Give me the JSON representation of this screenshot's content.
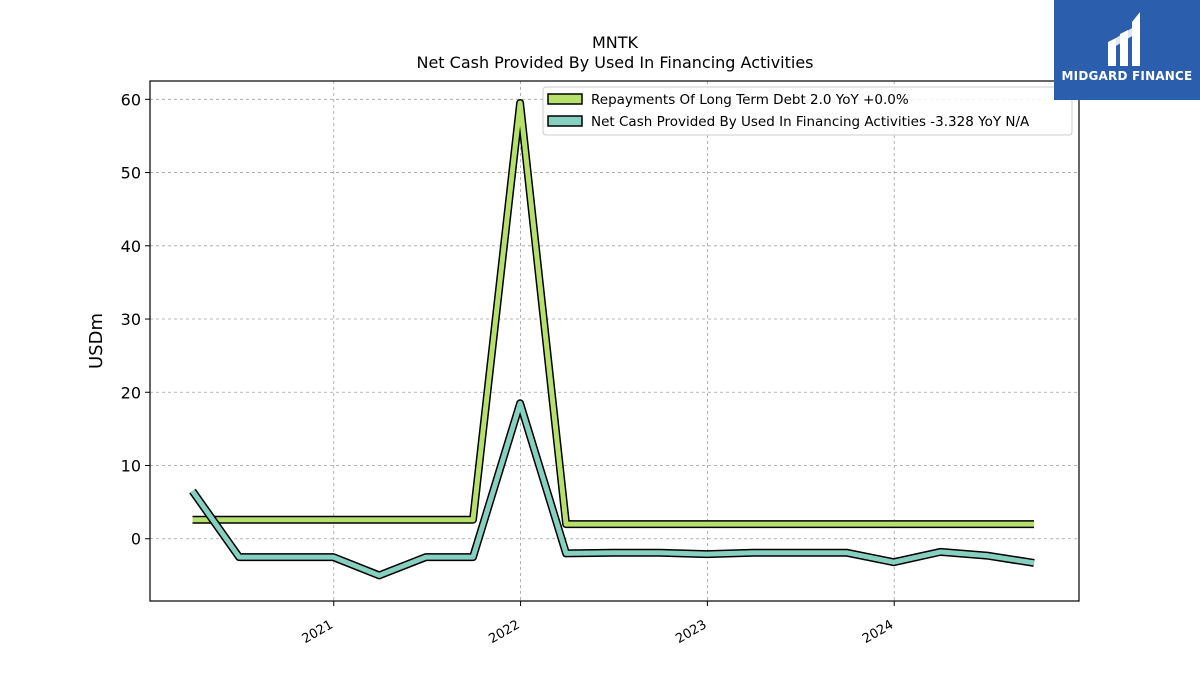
{
  "chart_data": {
    "type": "line",
    "title": "MNTK",
    "subtitle": "Net Cash Provided By Used In Financing Activities",
    "ylabel": "USDm",
    "xlabel": "",
    "ylim": [
      -8.5,
      62.5
    ],
    "xlim": [
      "2020-01-08",
      "2024-12-27"
    ],
    "yticks": [
      0,
      10,
      20,
      30,
      40,
      50,
      60
    ],
    "xticks": [
      "2021",
      "2022",
      "2023",
      "2024"
    ],
    "grid": true,
    "legend_position": "top-right",
    "series": [
      {
        "name": "Repayments Of Long Term Debt  2.0 YoY +0.0%",
        "color": "#b5e06b",
        "points": [
          {
            "x": "2020-03-31",
            "y": 2.6
          },
          {
            "x": "2021-09-30",
            "y": 2.6
          },
          {
            "x": "2021-12-31",
            "y": 59.5
          },
          {
            "x": "2022-03-31",
            "y": 2.0
          },
          {
            "x": "2024-09-30",
            "y": 2.0
          }
        ]
      },
      {
        "name": "Net Cash Provided By Used In Financing Activities  -3.328 YoY N/A",
        "color": "#86d0c0",
        "points": [
          {
            "x": "2020-03-31",
            "y": 6.5
          },
          {
            "x": "2020-06-30",
            "y": -2.5
          },
          {
            "x": "2020-09-30",
            "y": -2.5
          },
          {
            "x": "2020-12-31",
            "y": -2.5
          },
          {
            "x": "2021-03-31",
            "y": -5.0
          },
          {
            "x": "2021-06-30",
            "y": -2.5
          },
          {
            "x": "2021-09-30",
            "y": -2.5
          },
          {
            "x": "2021-12-31",
            "y": 18.5
          },
          {
            "x": "2022-03-31",
            "y": -2.0
          },
          {
            "x": "2022-06-30",
            "y": -1.9
          },
          {
            "x": "2022-09-30",
            "y": -1.9
          },
          {
            "x": "2022-12-31",
            "y": -2.1
          },
          {
            "x": "2023-03-31",
            "y": -1.9
          },
          {
            "x": "2023-06-30",
            "y": -1.9
          },
          {
            "x": "2023-09-30",
            "y": -1.9
          },
          {
            "x": "2023-12-31",
            "y": -3.2
          },
          {
            "x": "2024-03-31",
            "y": -1.8
          },
          {
            "x": "2024-06-30",
            "y": -2.3
          },
          {
            "x": "2024-09-30",
            "y": -3.3
          }
        ]
      }
    ]
  },
  "logo": {
    "text": "MIDGARD FINANCE",
    "color": "#2b5fae"
  }
}
